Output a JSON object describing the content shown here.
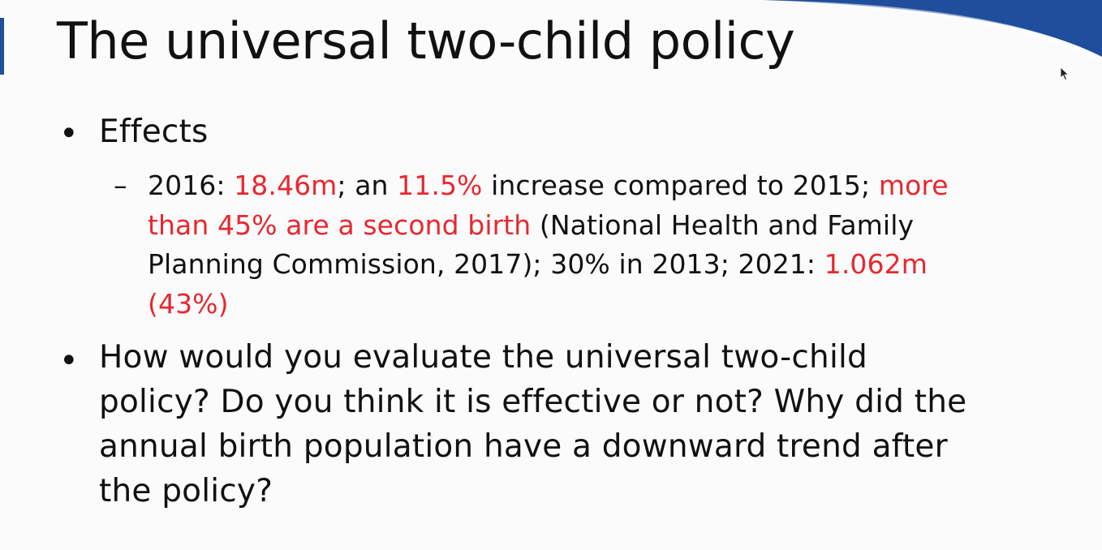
{
  "slide": {
    "title": "The universal two-child policy",
    "bullet_1": {
      "heading": "Effects",
      "sub": {
        "dash": "–",
        "lines": [
          [
            {
              "t": "2016: ",
              "red": false
            },
            {
              "t": "18.46m",
              "red": true
            },
            {
              "t": "; an ",
              "red": false
            },
            {
              "t": "11.5%",
              "red": true
            },
            {
              "t": " increase compared to 2015; ",
              "red": false
            },
            {
              "t": "more",
              "red": true
            }
          ],
          [
            {
              "t": "than 45% are a second birth",
              "red": true
            },
            {
              "t": " (National Health and Family",
              "red": false
            }
          ],
          [
            {
              "t": "Planning Commission, 2017); 30% in 2013;  2021: ",
              "red": false
            },
            {
              "t": "1.062m",
              "red": true
            }
          ],
          [
            {
              "t": "(43%)",
              "red": true
            }
          ]
        ]
      }
    },
    "bullet_2": {
      "lines": [
        "How would you evaluate the universal two-child",
        "policy? Do you think it is effective or not? Why did the",
        "annual birth population have a downward trend after",
        "the policy?"
      ]
    },
    "bullet_glyph": "•",
    "colors": {
      "accent_red": "#e8272f",
      "accent_blue": "#1f4e9c",
      "text": "#111111"
    }
  }
}
